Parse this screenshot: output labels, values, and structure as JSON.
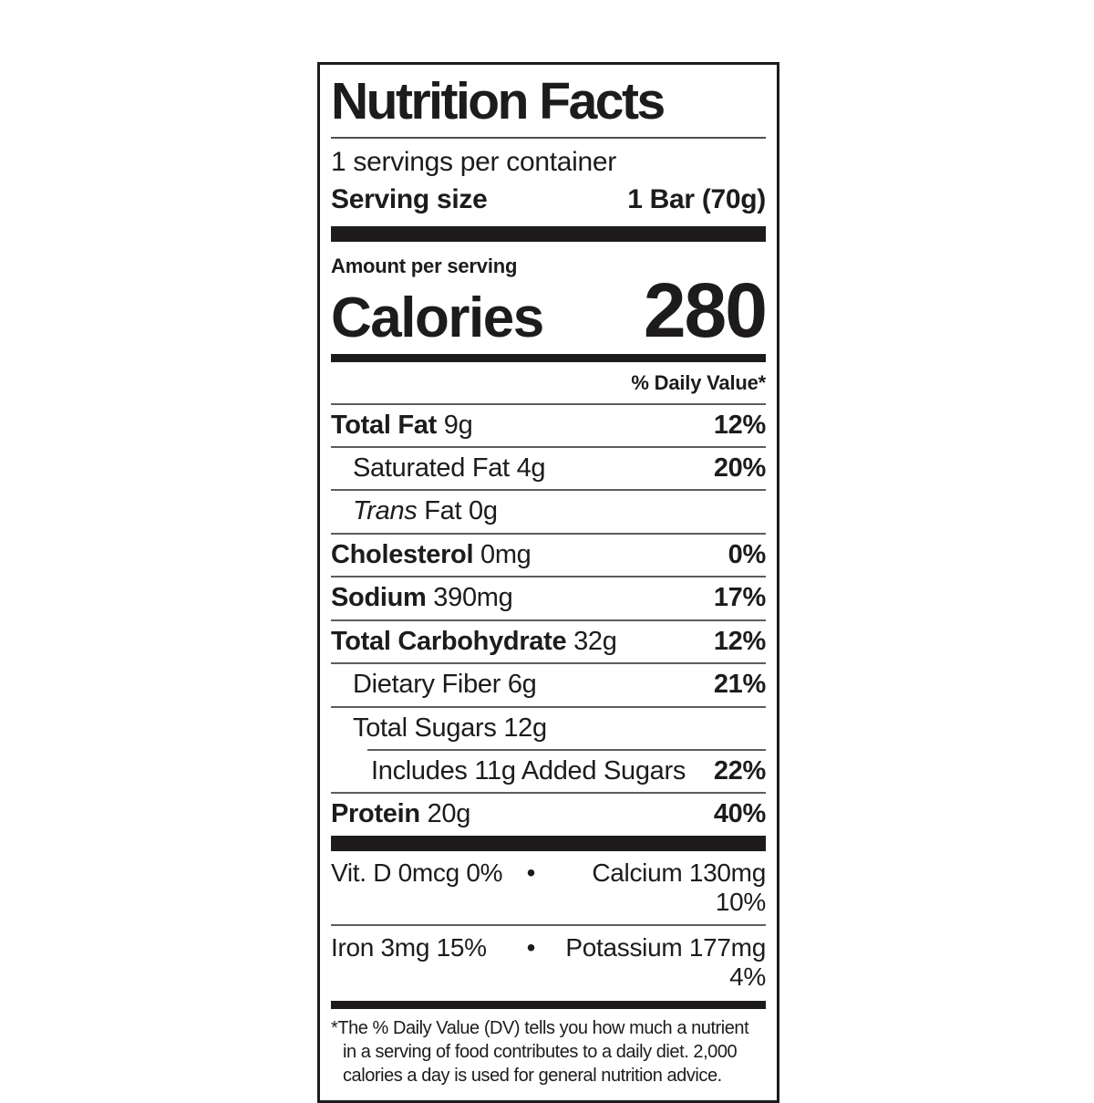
{
  "label": {
    "title": "Nutrition Facts",
    "servings_per_container": "1 servings per container",
    "serving_size_label": "Serving size",
    "serving_size_value": "1 Bar (70g)",
    "amount_per_serving": "Amount per serving",
    "calories_label": "Calories",
    "calories_value": "280",
    "daily_value_header": "% Daily Value*",
    "rows": [
      {
        "strong": "Total Fat",
        "normal": " 9g",
        "dv": "12%"
      },
      {
        "strong": "",
        "normal": "Saturated Fat 4g",
        "dv": "20%"
      },
      {
        "italic": "Trans",
        "normal": " Fat 0g",
        "dv": ""
      },
      {
        "strong": "Cholesterol",
        "normal": " 0mg",
        "dv": "0%"
      },
      {
        "strong": "Sodium",
        "normal": " 390mg",
        "dv": "17%"
      },
      {
        "strong": "Total Carbohydrate",
        "normal": " 32g",
        "dv": "12%"
      },
      {
        "strong": "",
        "normal": "Dietary Fiber 6g",
        "dv": "21%"
      },
      {
        "strong": "",
        "normal": "Total Sugars 12g",
        "dv": ""
      },
      {
        "strong": "",
        "normal": "Includes 11g Added Sugars",
        "dv": "22%"
      },
      {
        "strong": "Protein",
        "normal": " 20g",
        "dv": "40%"
      }
    ],
    "micronutrients": [
      {
        "left": "Vit. D 0mcg 0%",
        "separator": "•",
        "right": "Calcium 130mg 10%"
      },
      {
        "left": "Iron 3mg 15%",
        "separator": "•",
        "right": "Potassium 177mg 4%"
      }
    ],
    "footnote_lines": [
      "*The % Daily Value (DV) tells you how much a nutrient",
      "in a serving of food contributes to a daily diet. 2,000",
      "calories a day is used for general nutrition advice."
    ]
  },
  "colors": {
    "ink": "#1d1b1b",
    "hairline": "#5d5d5d",
    "background": "#ffffff"
  }
}
